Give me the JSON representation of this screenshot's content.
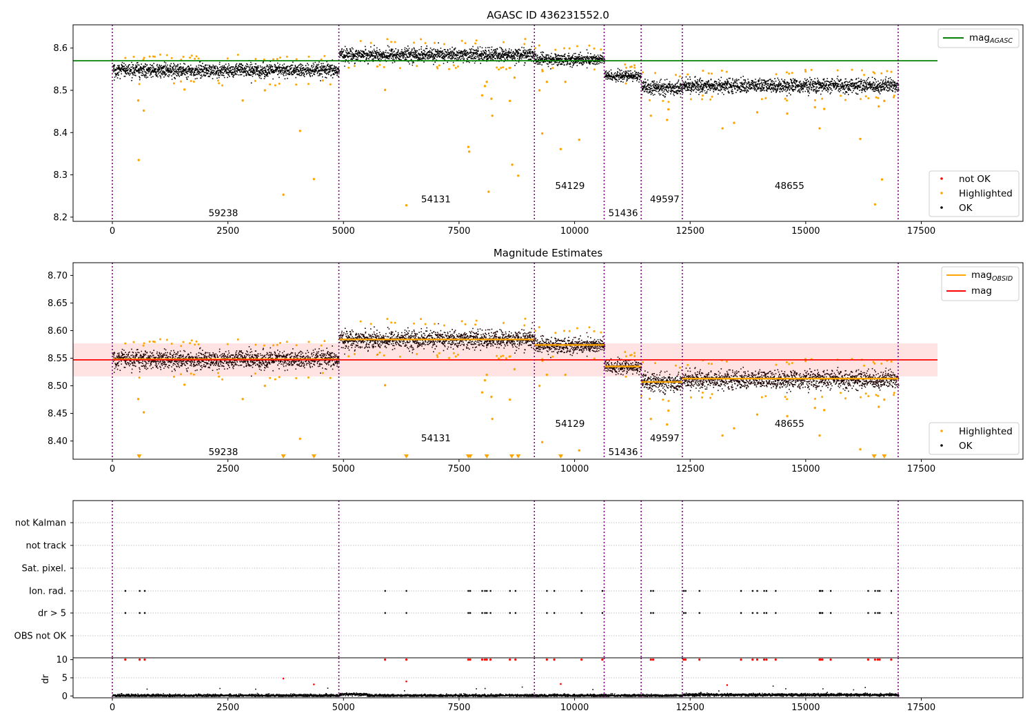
{
  "chart_data": [
    {
      "type": "scatter",
      "title": "AGASC ID 436231552.0",
      "xlabel": "",
      "ylabel": "",
      "xlim": [
        -850,
        19700
      ],
      "ylim": [
        8.19,
        8.655
      ],
      "xticks": [
        0,
        2500,
        5000,
        7500,
        10000,
        12500,
        15000,
        17500
      ],
      "yticks": [
        8.2,
        8.3,
        8.4,
        8.5,
        8.6
      ],
      "obsid_boundaries": [
        0,
        4900,
        9130,
        10640,
        11440,
        12330,
        17000
      ],
      "obsid_labels": [
        {
          "text": "59238",
          "x": 2400,
          "y": 8.21
        },
        {
          "text": "54131",
          "x": 7000,
          "y": 8.243
        },
        {
          "text": "54129",
          "x": 9900,
          "y": 8.275
        },
        {
          "text": "51436",
          "x": 11050,
          "y": 8.21
        },
        {
          "text": "49597",
          "x": 11950,
          "y": 8.243
        },
        {
          "text": "48655",
          "x": 14650,
          "y": 8.275
        }
      ],
      "reference_line": {
        "name": "mag",
        "subscript": "AGASC",
        "y": 8.57,
        "color": "#008000"
      },
      "legend_lines": [
        {
          "name": "mag",
          "subscript": "AGASC",
          "color": "#008000"
        }
      ],
      "legend_points": [
        {
          "name": "not OK",
          "color": "#ff0000"
        },
        {
          "name": "Highlighted",
          "color": "#ffa500"
        },
        {
          "name": "OK",
          "color": "#000000"
        }
      ],
      "segments": [
        {
          "x0": 0,
          "x1": 4900,
          "mean": 8.548,
          "spread": 0.008
        },
        {
          "x0": 4900,
          "x1": 9130,
          "mean": 8.585,
          "spread": 0.008
        },
        {
          "x0": 9130,
          "x1": 10640,
          "mean": 8.574,
          "spread": 0.007
        },
        {
          "x0": 10640,
          "x1": 11440,
          "mean": 8.535,
          "spread": 0.006
        },
        {
          "x0": 11440,
          "x1": 12330,
          "mean": 8.507,
          "spread": 0.008
        },
        {
          "x0": 12330,
          "x1": 17000,
          "mean": 8.512,
          "spread": 0.008
        }
      ],
      "highlighted_points": [
        [
          560,
          8.476
        ],
        [
          570,
          8.335
        ],
        [
          680,
          8.452
        ],
        [
          1560,
          8.502
        ],
        [
          2820,
          8.476
        ],
        [
          3700,
          8.253
        ],
        [
          4060,
          8.404
        ],
        [
          4360,
          8.29
        ],
        [
          3300,
          8.5
        ],
        [
          5900,
          8.501
        ],
        [
          6360,
          8.228
        ],
        [
          7700,
          8.366
        ],
        [
          7720,
          8.355
        ],
        [
          8000,
          8.488
        ],
        [
          8060,
          8.51
        ],
        [
          8100,
          8.52
        ],
        [
          8140,
          8.26
        ],
        [
          8200,
          8.48
        ],
        [
          8220,
          8.44
        ],
        [
          8600,
          8.475
        ],
        [
          8650,
          8.324
        ],
        [
          8780,
          8.298
        ],
        [
          8700,
          8.53
        ],
        [
          9300,
          8.398
        ],
        [
          9400,
          8.52
        ],
        [
          9700,
          8.361
        ],
        [
          9800,
          8.52
        ],
        [
          10100,
          8.383
        ],
        [
          9240,
          8.5
        ],
        [
          11650,
          8.44
        ],
        [
          12000,
          8.43
        ],
        [
          12030,
          8.455
        ],
        [
          13200,
          8.41
        ],
        [
          13450,
          8.423
        ],
        [
          13950,
          8.448
        ],
        [
          14600,
          8.445
        ],
        [
          15200,
          8.46
        ],
        [
          15300,
          8.41
        ],
        [
          15400,
          8.456
        ],
        [
          16180,
          8.385
        ],
        [
          16500,
          8.23
        ],
        [
          16650,
          8.289
        ],
        [
          16580,
          8.462
        ],
        [
          16700,
          8.475
        ]
      ]
    },
    {
      "type": "scatter",
      "title": "Magnitude Estimates",
      "xlabel": "",
      "ylabel": "",
      "xlim": [
        -850,
        19700
      ],
      "ylim": [
        8.367,
        8.723
      ],
      "xticks": [
        0,
        2500,
        5000,
        7500,
        10000,
        12500,
        15000,
        17500
      ],
      "yticks": [
        8.4,
        8.45,
        8.5,
        8.55,
        8.6,
        8.65,
        8.7
      ],
      "obsid_labels": [
        {
          "text": "59238",
          "x": 2400,
          "y": 8.381
        },
        {
          "text": "54131",
          "x": 7000,
          "y": 8.406
        },
        {
          "text": "54129",
          "x": 9900,
          "y": 8.432
        },
        {
          "text": "51436",
          "x": 11050,
          "y": 8.381
        },
        {
          "text": "49597",
          "x": 11950,
          "y": 8.406
        },
        {
          "text": "48655",
          "x": 14650,
          "y": 8.432
        }
      ],
      "overall_mag": {
        "y": 8.547,
        "band": [
          8.517,
          8.577
        ],
        "x_end": 17850,
        "color": "#ff0000"
      },
      "obsid_mag_values": [
        8.548,
        8.584,
        8.574,
        8.535,
        8.507,
        8.513
      ],
      "legend_lines": [
        {
          "name": "mag",
          "subscript": "OBSID",
          "color": "#ffa500"
        },
        {
          "name": "mag",
          "subscript": "",
          "color": "#ff0000"
        }
      ],
      "legend_points": [
        {
          "name": "Highlighted",
          "color": "#ffa500"
        },
        {
          "name": "OK",
          "color": "#000000"
        }
      ],
      "clipped_markers_x": [
        580,
        3700,
        4360,
        6360,
        7700,
        7740,
        8100,
        8640,
        8780,
        9700,
        16480,
        16700
      ]
    },
    {
      "type": "scatter",
      "title": "",
      "xlabel": "",
      "ylabel": "dr",
      "xlim": [
        -850,
        19700
      ],
      "xticks": [
        0,
        2500,
        5000,
        7500,
        10000,
        12500,
        15000,
        17500
      ],
      "flag_categories": [
        "not Kalman",
        "not track",
        "Sat. pixel.",
        "Ion. rad.",
        "dr > 5",
        "OBS not OK"
      ],
      "flag_times": [
        280,
        590,
        700,
        5900,
        6360,
        7700,
        7740,
        8000,
        8060,
        8100,
        8180,
        8600,
        8720,
        9400,
        9560,
        10150,
        10600,
        11650,
        11700,
        12360,
        12400,
        12700,
        13600,
        13850,
        13950,
        14100,
        14150,
        14350,
        15300,
        15320,
        15360,
        15540,
        16350,
        16500,
        16560,
        16600,
        16850
      ],
      "dr_yticks": [
        0,
        5,
        10
      ],
      "dr_ylim": [
        -0.5,
        10.5
      ],
      "dr_outliers": [
        [
          3700,
          4.8
        ],
        [
          4360,
          3.2
        ],
        [
          6360,
          4.0
        ],
        [
          9700,
          3.3
        ],
        [
          13300,
          3.0
        ]
      ]
    }
  ]
}
